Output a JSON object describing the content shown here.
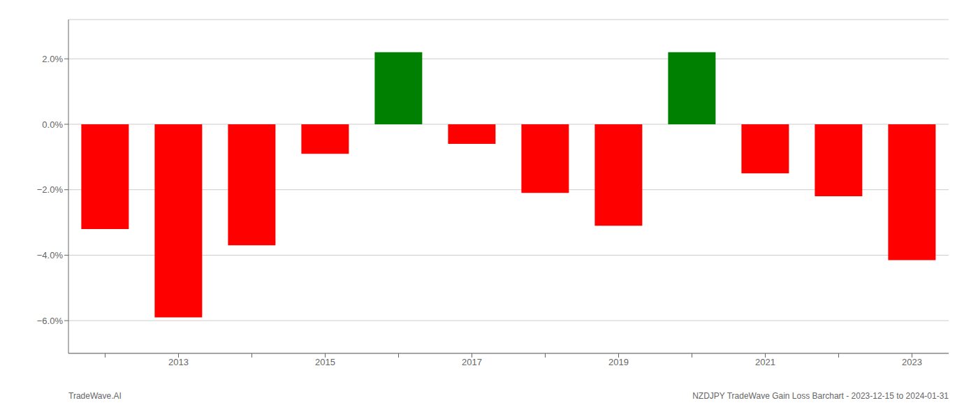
{
  "chart_data": {
    "type": "bar",
    "categories": [
      null,
      "2013",
      null,
      "2015",
      null,
      "2017",
      null,
      "2019",
      null,
      "2021",
      null,
      "2023"
    ],
    "values": [
      -3.2,
      -5.9,
      -3.7,
      -0.9,
      2.2,
      -0.6,
      -2.1,
      -3.1,
      2.2,
      -1.5,
      -2.2,
      -4.15
    ],
    "colors": [
      "#ff0000",
      "#ff0000",
      "#ff0000",
      "#ff0000",
      "#008000",
      "#ff0000",
      "#ff0000",
      "#ff0000",
      "#008000",
      "#ff0000",
      "#ff0000",
      "#ff0000"
    ],
    "ylim": [
      -7.0,
      3.2
    ],
    "yticks": [
      {
        "value": -6.0,
        "label": "−6.0%"
      },
      {
        "value": -4.0,
        "label": "−4.0%"
      },
      {
        "value": -2.0,
        "label": "−2.0%"
      },
      {
        "value": 0.0,
        "label": "0.0%"
      },
      {
        "value": 2.0,
        "label": "2.0%"
      }
    ],
    "grid": true,
    "annotations": [
      "TradeWave.AI",
      "NZDJPY TradeWave Gain Loss Barchart - 2023-12-15 to 2024-01-31"
    ]
  }
}
